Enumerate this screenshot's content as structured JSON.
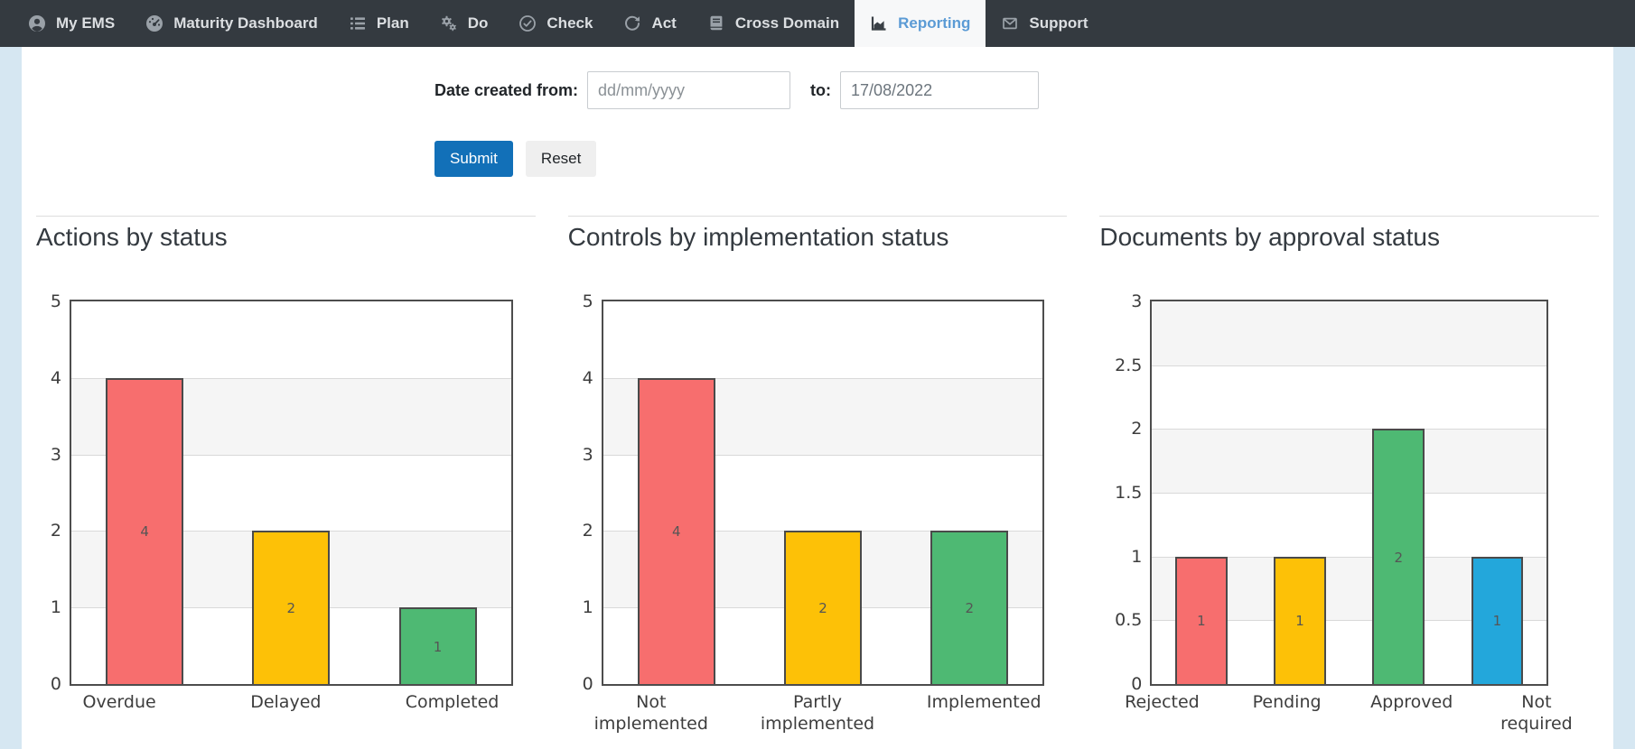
{
  "nav": {
    "items": [
      {
        "label": "My EMS",
        "icon": "user-circle-icon",
        "active": false
      },
      {
        "label": "Maturity Dashboard",
        "icon": "gauge-icon",
        "active": false
      },
      {
        "label": "Plan",
        "icon": "list-icon",
        "active": false
      },
      {
        "label": "Do",
        "icon": "gears-icon",
        "active": false
      },
      {
        "label": "Check",
        "icon": "check-circle-icon",
        "active": false
      },
      {
        "label": "Act",
        "icon": "redo-icon",
        "active": false
      },
      {
        "label": "Cross Domain",
        "icon": "book-icon",
        "active": false
      },
      {
        "label": "Reporting",
        "icon": "bar-chart-icon",
        "active": true
      },
      {
        "label": "Support",
        "icon": "envelope-icon",
        "active": false
      }
    ]
  },
  "filter": {
    "from_label": "Date created from:",
    "from_placeholder": "dd/mm/yyyy",
    "from_value": "",
    "to_label": "to:",
    "to_value": "17/08/2022",
    "submit_label": "Submit",
    "reset_label": "Reset"
  },
  "colors": {
    "navbar_bg": "#343a40",
    "active_tab_text": "#5b9bd5",
    "page_bg": "#d6e7f2",
    "submit_bg": "#1270b8",
    "bar_red": "#f76e6e",
    "bar_yellow": "#fdc107",
    "bar_green": "#4eb973",
    "bar_blue": "#23a7db",
    "band_gray": "#f5f5f5",
    "plot_border": "#4d4d4d"
  },
  "chart_data": [
    {
      "type": "bar",
      "title": "Actions by status",
      "categories": [
        "Overdue",
        "Delayed",
        "Completed"
      ],
      "values": [
        4,
        2,
        1
      ],
      "bar_colors": [
        "#f76e6e",
        "#fdc107",
        "#4eb973"
      ],
      "ylim": [
        0,
        5
      ],
      "ytick_step": 1,
      "grid": "horizontal-bands",
      "legend": "none"
    },
    {
      "type": "bar",
      "title": "Controls by implementation status",
      "categories": [
        "Not implemented",
        "Partly implemented",
        "Implemented"
      ],
      "values": [
        4,
        2,
        2
      ],
      "bar_colors": [
        "#f76e6e",
        "#fdc107",
        "#4eb973"
      ],
      "ylim": [
        0,
        5
      ],
      "ytick_step": 1,
      "grid": "horizontal-bands",
      "legend": "none"
    },
    {
      "type": "bar",
      "title": "Documents by approval status",
      "categories": [
        "Rejected",
        "Pending",
        "Approved",
        "Not required"
      ],
      "values": [
        1,
        1,
        2,
        1
      ],
      "bar_colors": [
        "#f76e6e",
        "#fdc107",
        "#4eb973",
        "#23a7db"
      ],
      "ylim": [
        0,
        3
      ],
      "ytick_step": 0.5,
      "grid": "horizontal-bands",
      "legend": "none"
    }
  ]
}
